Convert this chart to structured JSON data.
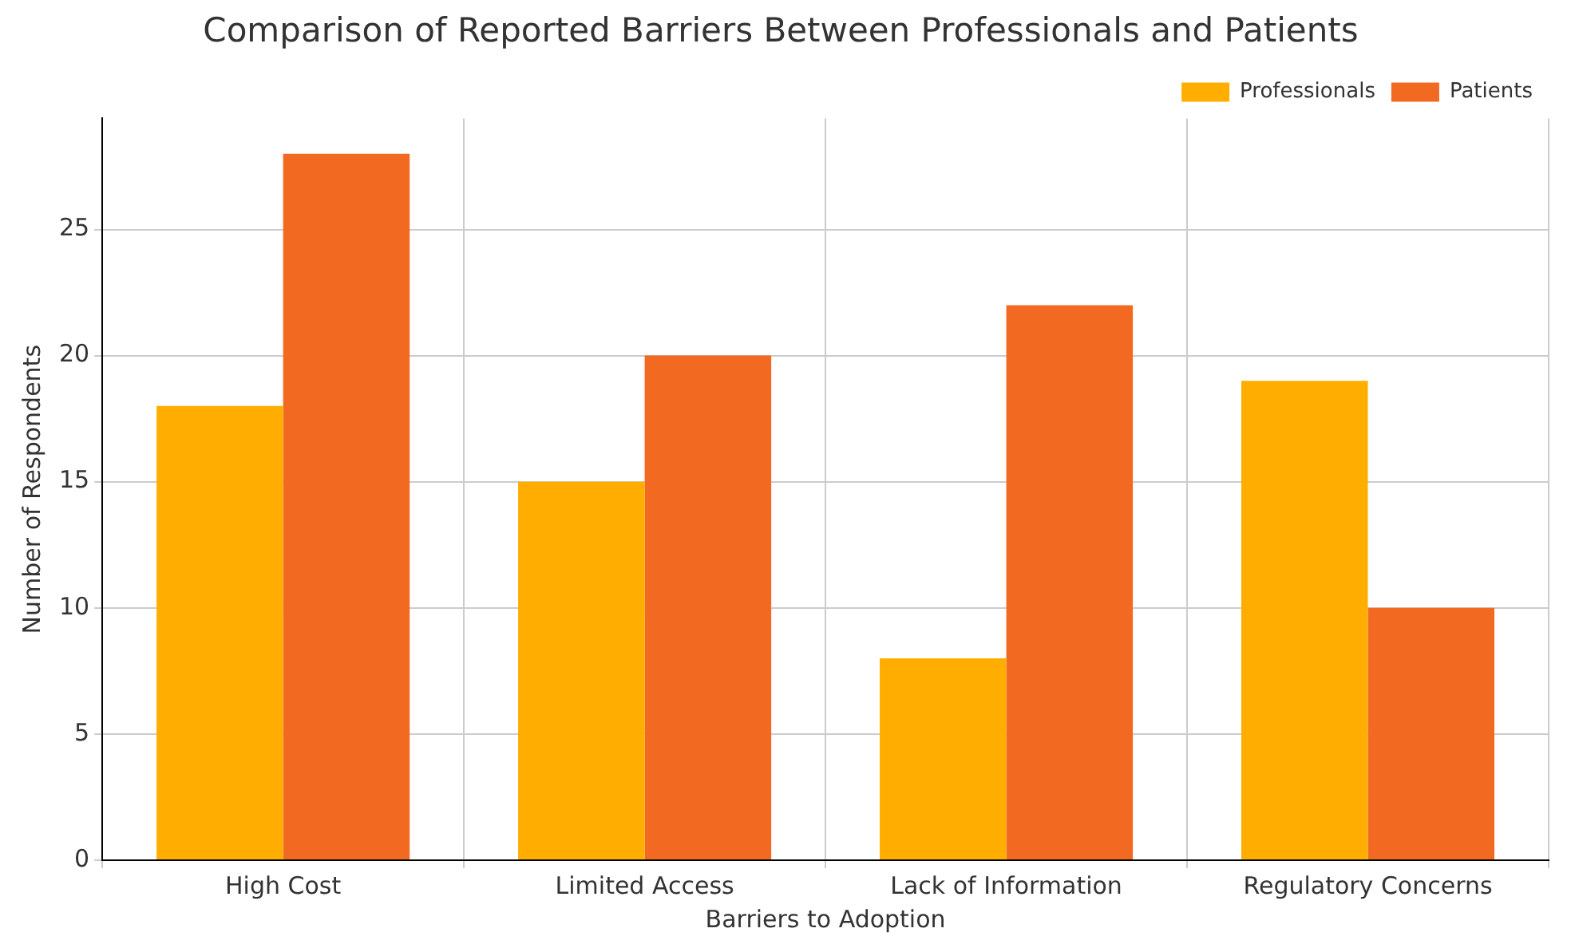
{
  "chart_data": {
    "type": "bar",
    "title": "Comparison of Reported Barriers Between Professionals and Patients",
    "xlabel": "Barriers to Adoption",
    "ylabel": "Number of Respondents",
    "categories": [
      "High Cost",
      "Limited Access",
      "Lack of Information",
      "Regulatory Concerns"
    ],
    "series": [
      {
        "name": "Professionals",
        "color": "#ffae00",
        "values": [
          18,
          15,
          8,
          19
        ]
      },
      {
        "name": "Patients",
        "color": "#f26a22",
        "values": [
          28,
          20,
          22,
          10
        ]
      }
    ],
    "ylim": [
      0,
      29.4
    ],
    "yticks": [
      0,
      5,
      10,
      15,
      20,
      25
    ],
    "grid": true,
    "legend": "top right"
  }
}
